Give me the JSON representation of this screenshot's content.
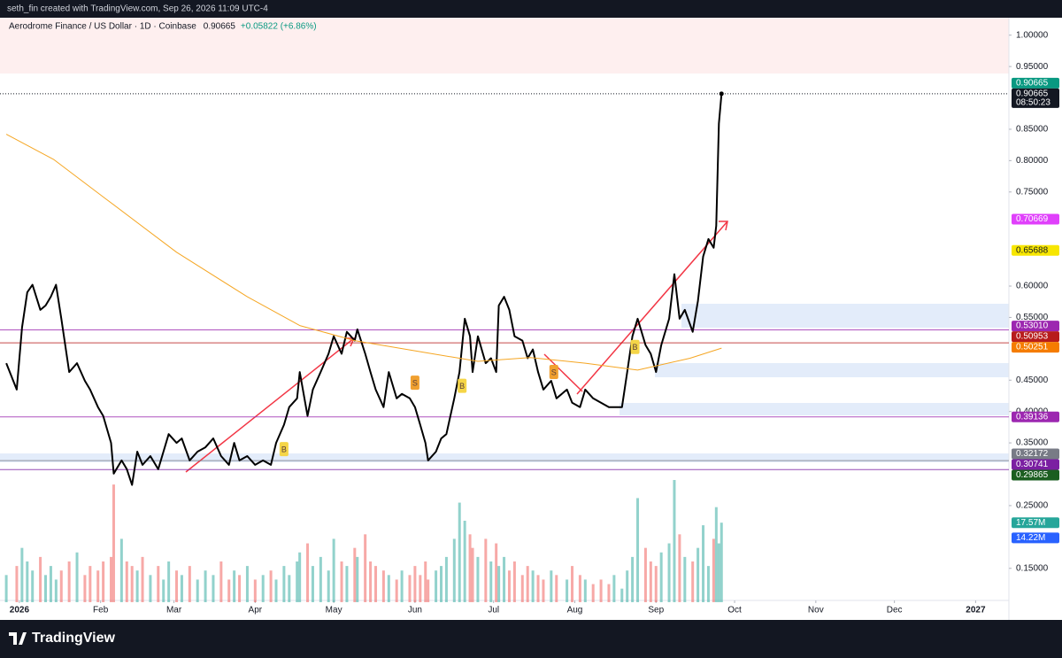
{
  "chart_data": {
    "type": "line",
    "credit": "seth_fin created with TradingView.com, Sep 26, 2026 11:09 UTC-4",
    "title": "Aerodrome Finance / US Dollar · 1D · Coinbase",
    "last": "0.90665",
    "change": "+0.05822 (+6.86%)",
    "brand": "TradingView",
    "countdown": "08:50:23",
    "xlim": [
      -7.4,
      377.7
    ],
    "xticks": [
      {
        "value": 0,
        "label": "2026"
      },
      {
        "value": 31,
        "label": "Feb"
      },
      {
        "value": 59,
        "label": "Mar"
      },
      {
        "value": 90,
        "label": "Apr"
      },
      {
        "value": 120,
        "label": "May"
      },
      {
        "value": 151,
        "label": "Jun"
      },
      {
        "value": 181,
        "label": "Jul"
      },
      {
        "value": 212,
        "label": "Aug"
      },
      {
        "value": 243,
        "label": "Sep"
      },
      {
        "value": 273,
        "label": "Oct"
      },
      {
        "value": 304,
        "label": "Nov"
      },
      {
        "value": 334,
        "label": "Dec"
      },
      {
        "value": 365,
        "label": "2027"
      }
    ],
    "ylim": [
      0.096,
      1.025
    ],
    "yticks": [
      {
        "value": 1,
        "label": "1.00000"
      },
      {
        "value": 0.95,
        "label": "0.95000"
      },
      {
        "value": 0.85,
        "label": "0.85000"
      },
      {
        "value": 0.8,
        "label": "0.80000"
      },
      {
        "value": 0.75,
        "label": "0.75000"
      },
      {
        "value": 0.6,
        "label": "0.60000"
      },
      {
        "value": 0.55,
        "label": "0.55000"
      },
      {
        "value": 0.45,
        "label": "0.45000"
      },
      {
        "value": 0.4,
        "label": "0.40000"
      },
      {
        "value": 0.35,
        "label": "0.35000"
      },
      {
        "value": 0.25,
        "label": "0.25000"
      },
      {
        "value": 0.15,
        "label": "0.15000"
      }
    ],
    "grid": false,
    "series": [
      {
        "color": "#000000",
        "width": 2,
        "x": [
          -5,
          -1,
          1,
          3,
          5,
          8,
          10,
          12,
          14,
          16,
          19,
          22,
          25,
          27,
          30,
          32,
          35,
          36,
          39,
          41,
          43,
          45,
          47,
          50,
          53,
          55,
          57,
          60,
          62,
          65,
          68,
          71,
          74,
          77,
          80,
          82,
          84,
          87,
          90,
          93,
          96,
          98,
          101,
          103,
          106,
          107,
          110,
          112,
          115,
          118,
          120,
          123,
          125,
          128,
          129,
          132,
          134,
          136,
          139,
          141,
          144,
          146,
          149,
          151,
          153,
          155,
          156,
          159,
          161,
          163,
          166,
          168,
          170,
          172,
          173,
          175,
          178,
          180,
          182,
          183,
          185,
          187,
          189,
          192,
          194,
          196,
          198,
          200,
          203,
          205,
          209,
          211,
          214,
          216,
          219,
          222,
          225,
          227,
          230,
          232,
          234,
          236,
          239,
          241,
          243,
          245,
          248,
          250,
          252,
          254,
          257,
          259,
          261,
          263,
          265,
          266,
          267,
          268
        ],
        "values": [
          0.477,
          0.435,
          0.534,
          0.59,
          0.602,
          0.562,
          0.569,
          0.583,
          0.602,
          0.548,
          0.463,
          0.477,
          0.449,
          0.435,
          0.407,
          0.393,
          0.35,
          0.301,
          0.322,
          0.308,
          0.283,
          0.336,
          0.315,
          0.329,
          0.308,
          0.336,
          0.364,
          0.35,
          0.357,
          0.322,
          0.336,
          0.343,
          0.357,
          0.329,
          0.315,
          0.35,
          0.322,
          0.329,
          0.315,
          0.322,
          0.315,
          0.35,
          0.379,
          0.407,
          0.421,
          0.463,
          0.393,
          0.435,
          0.463,
          0.492,
          0.52,
          0.492,
          0.527,
          0.513,
          0.531,
          0.492,
          0.463,
          0.435,
          0.407,
          0.463,
          0.421,
          0.428,
          0.421,
          0.407,
          0.379,
          0.35,
          0.322,
          0.336,
          0.357,
          0.364,
          0.421,
          0.463,
          0.548,
          0.52,
          0.463,
          0.52,
          0.477,
          0.485,
          0.463,
          0.569,
          0.583,
          0.562,
          0.52,
          0.513,
          0.485,
          0.499,
          0.463,
          0.435,
          0.449,
          0.421,
          0.435,
          0.414,
          0.407,
          0.435,
          0.421,
          0.414,
          0.407,
          0.407,
          0.407,
          0.463,
          0.52,
          0.548,
          0.506,
          0.492,
          0.463,
          0.506,
          0.548,
          0.619,
          0.548,
          0.562,
          0.527,
          0.576,
          0.647,
          0.675,
          0.661,
          0.696,
          0.859,
          0.90665
        ]
      },
      {
        "color": "#f5a623",
        "width": 1,
        "x": [
          -5,
          13,
          33,
          60,
          87,
          107,
          128,
          155,
          175,
          195,
          216,
          236,
          256,
          268
        ],
        "values": [
          0.842,
          0.802,
          0.739,
          0.654,
          0.583,
          0.537,
          0.513,
          0.494,
          0.48,
          0.486,
          0.477,
          0.466,
          0.485,
          0.501
        ]
      }
    ],
    "volume": {
      "up_color": "#26a69a",
      "down_color": "#ef5350",
      "lim": [
        0,
        27
      ],
      "values": [
        6,
        8,
        12,
        9,
        7,
        10,
        6,
        8,
        5,
        7,
        9,
        11,
        6,
        8,
        7,
        9,
        10,
        26,
        14,
        9,
        8,
        7,
        10,
        6,
        8,
        5,
        9,
        7,
        6,
        8,
        5,
        7,
        6,
        9,
        5,
        7,
        6,
        8,
        5,
        6,
        7,
        5,
        8,
        6,
        9,
        11,
        13,
        8,
        10,
        7,
        14,
        9,
        8,
        12,
        10,
        15,
        9,
        8,
        7,
        6,
        5,
        7,
        6,
        8,
        6,
        9,
        5,
        7,
        8,
        10,
        14,
        22,
        18,
        15,
        12,
        10,
        14,
        9,
        13,
        8,
        10,
        7,
        9,
        6,
        8,
        7,
        6,
        5,
        7,
        6,
        5,
        8,
        6,
        5,
        4,
        5,
        4,
        6,
        3,
        7,
        10,
        23,
        12,
        9,
        8,
        11,
        13,
        27,
        15,
        10,
        9,
        12,
        17,
        8,
        14,
        21,
        13,
        17.57
      ]
    },
    "price_labels": [
      {
        "value": 0.90665,
        "label": "0.90665",
        "color": "#089981"
      },
      {
        "value": 0.90665,
        "label": "0.90665",
        "color": "#131722",
        "countdown": true,
        "line": true
      },
      {
        "value": 0.70669,
        "label": "0.70669",
        "color": "#e040fb"
      },
      {
        "value": 0.65688,
        "label": "0.65688",
        "color": "#f7e600"
      },
      {
        "value": 0.5301,
        "label": "0.53010",
        "color": "#9c27b0",
        "line": true
      },
      {
        "value": 0.50953,
        "label": "0.50953",
        "color": "#b71c1c",
        "line": true
      },
      {
        "value": 0.50251,
        "label": "0.50251",
        "color": "#f57c00"
      },
      {
        "value": 0.39136,
        "label": "0.39136",
        "color": "#9c27b0",
        "line": true
      },
      {
        "value": 0.32172,
        "label": "0.32172",
        "color": "#787b86",
        "line": true
      },
      {
        "value": 0.30741,
        "label": "0.30741",
        "color": "#7b1fa2",
        "line": true
      },
      {
        "value": 0.29865,
        "label": "0.29865",
        "color": "#1b5e20"
      }
    ],
    "volume_labels": [
      {
        "value": 17.57,
        "label": "17.57M",
        "color": "#26a69a"
      },
      {
        "value": 14.22,
        "label": "14.22M",
        "color": "#2962ff"
      }
    ],
    "signals": [
      {
        "label": "B",
        "x": 101,
        "value": 0.34,
        "color": "#f5d547"
      },
      {
        "label": "S",
        "x": 151,
        "value": 0.446,
        "color": "#f0a030"
      },
      {
        "label": "B",
        "x": 169,
        "value": 0.441,
        "color": "#f5d547"
      },
      {
        "label": "S",
        "x": 204,
        "value": 0.463,
        "color": "#f0a030"
      },
      {
        "label": "B",
        "x": 235,
        "value": 0.503,
        "color": "#f5d547"
      }
    ]
  }
}
